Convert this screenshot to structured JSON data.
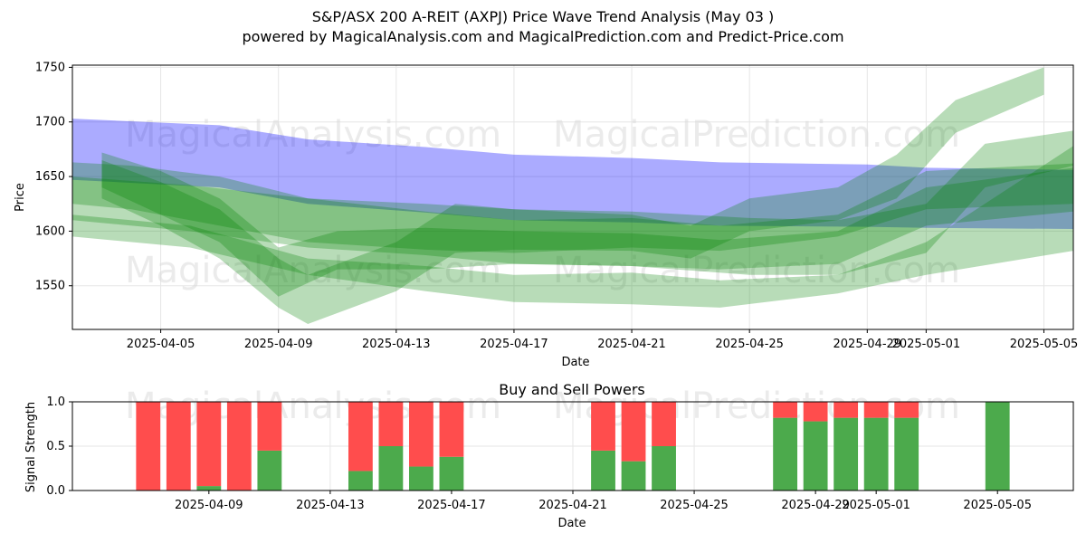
{
  "title": "S&P/ASX 200 A-REIT (AXPJ) Price Wave Trend Analysis (May 03 )",
  "subtitle": "powered by MagicalAnalysis.com and MagicalPrediction.com and Predict-Price.com",
  "watermarks": [
    "MagicalAnalysis.com",
    "MagicalPrediction.com"
  ],
  "chart_data": [
    {
      "type": "area",
      "title": "",
      "xlabel": "Date",
      "ylabel": "Price",
      "xlim": [
        "2025-04-02",
        "2025-05-06"
      ],
      "ylim": [
        1510,
        1752
      ],
      "yticks": [
        1550,
        1600,
        1650,
        1700,
        1750
      ],
      "xticks": [
        "2025-04-05",
        "2025-04-09",
        "2025-04-13",
        "2025-04-17",
        "2025-04-21",
        "2025-04-25",
        "2025-04-29",
        "2025-05-01",
        "2025-05-05"
      ],
      "grid": true,
      "colors": {
        "blue_band": "#0000ff",
        "green_band": "#008000"
      },
      "bands": [
        {
          "color": "blue",
          "x": [
            "2025-04-02",
            "2025-04-07",
            "2025-04-10",
            "2025-04-14",
            "2025-04-17",
            "2025-04-21",
            "2025-04-24",
            "2025-04-29",
            "2025-05-01",
            "2025-05-06"
          ],
          "upper": [
            1703,
            1697,
            1684,
            1677,
            1670,
            1667,
            1663,
            1661,
            1658,
            1656
          ],
          "lower": [
            1647,
            1640,
            1625,
            1617,
            1610,
            1608,
            1605,
            1604,
            1603,
            1602
          ]
        },
        {
          "color": "green",
          "x": [
            "2025-04-02",
            "2025-04-04",
            "2025-04-07",
            "2025-04-10",
            "2025-04-14",
            "2025-04-17",
            "2025-04-21",
            "2025-04-24",
            "2025-04-28",
            "2025-05-01",
            "2025-05-06"
          ],
          "upper": [
            1663,
            1660,
            1650,
            1630,
            1618,
            1610,
            1612,
            1605,
            1615,
            1655,
            1662
          ],
          "lower": [
            1625,
            1620,
            1605,
            1590,
            1583,
            1580,
            1585,
            1582,
            1595,
            1620,
            1625
          ]
        },
        {
          "color": "green",
          "x": [
            "2025-04-03",
            "2025-04-05",
            "2025-04-07",
            "2025-04-09",
            "2025-04-11",
            "2025-04-14",
            "2025-04-17",
            "2025-04-21",
            "2025-04-24",
            "2025-04-28",
            "2025-05-01",
            "2025-05-06"
          ],
          "upper": [
            1672,
            1655,
            1630,
            1585,
            1600,
            1603,
            1600,
            1598,
            1592,
            1600,
            1640,
            1658
          ],
          "lower": [
            1640,
            1615,
            1590,
            1540,
            1565,
            1565,
            1570,
            1568,
            1565,
            1570,
            1605,
            1618
          ]
        },
        {
          "color": "green",
          "x": [
            "2025-04-03",
            "2025-04-05",
            "2025-04-07",
            "2025-04-09",
            "2025-04-10",
            "2025-04-13",
            "2025-04-15",
            "2025-04-17",
            "2025-04-21",
            "2025-04-23",
            "2025-04-25",
            "2025-04-28",
            "2025-04-30",
            "2025-05-02",
            "2025-05-05"
          ],
          "upper": [
            1665,
            1645,
            1620,
            1575,
            1560,
            1590,
            1625,
            1620,
            1615,
            1605,
            1630,
            1640,
            1670,
            1720,
            1750
          ],
          "lower": [
            1630,
            1605,
            1575,
            1530,
            1515,
            1545,
            1580,
            1583,
            1582,
            1575,
            1600,
            1610,
            1630,
            1690,
            1725
          ]
        },
        {
          "color": "green",
          "x": [
            "2025-04-02",
            "2025-04-06",
            "2025-04-10",
            "2025-04-14",
            "2025-04-17",
            "2025-04-21",
            "2025-04-24",
            "2025-04-28",
            "2025-05-01",
            "2025-05-06"
          ],
          "upper": [
            1615,
            1605,
            1575,
            1568,
            1560,
            1562,
            1555,
            1560,
            1590,
            1678
          ],
          "lower": [
            1595,
            1585,
            1560,
            1545,
            1535,
            1533,
            1530,
            1543,
            1560,
            1582
          ]
        },
        {
          "color": "green",
          "x": [
            "2025-04-02",
            "2025-04-06",
            "2025-04-10",
            "2025-04-14",
            "2025-04-17",
            "2025-04-21",
            "2025-04-25",
            "2025-04-28",
            "2025-05-01",
            "2025-05-03",
            "2025-05-06"
          ],
          "upper": [
            1650,
            1642,
            1630,
            1625,
            1620,
            1618,
            1612,
            1610,
            1625,
            1680,
            1692
          ],
          "lower": [
            1610,
            1600,
            1585,
            1578,
            1570,
            1568,
            1560,
            1560,
            1580,
            1640,
            1660
          ]
        }
      ]
    },
    {
      "type": "bar",
      "title": "Buy and Sell Powers",
      "xlabel": "Date",
      "ylabel": "Signal Strength",
      "ylim": [
        0,
        1.0
      ],
      "yticks": [
        "0.0",
        "0.5",
        "1.0"
      ],
      "xticks": [
        "2025-04-09",
        "2025-04-13",
        "2025-04-17",
        "2025-04-21",
        "2025-04-25",
        "2025-04-29",
        "2025-05-01",
        "2025-05-05"
      ],
      "grid": true,
      "colors": {
        "buy": "#4caa4c",
        "sell": "#ff4d4d"
      },
      "categories": [
        "2025-04-07",
        "2025-04-08",
        "2025-04-09",
        "2025-04-10",
        "2025-04-11",
        "2025-04-14",
        "2025-04-15",
        "2025-04-16",
        "2025-04-17",
        "2025-04-22",
        "2025-04-23",
        "2025-04-24",
        "2025-04-28",
        "2025-04-29",
        "2025-04-30",
        "2025-05-01",
        "2025-05-02",
        "2025-05-05"
      ],
      "series": [
        {
          "name": "",
          "values": [
            0.0,
            0.0,
            0.05,
            0.0,
            0.45,
            0.22,
            0.5,
            0.27,
            0.38,
            0.45,
            0.33,
            0.5,
            0.82,
            0.78,
            0.82,
            0.82,
            0.82,
            1.0
          ]
        },
        {
          "name": "",
          "values": [
            1.0,
            1.0,
            0.95,
            1.0,
            0.55,
            0.78,
            0.5,
            0.73,
            0.62,
            0.55,
            0.67,
            0.5,
            0.18,
            0.22,
            0.18,
            0.18,
            0.18,
            0.0
          ]
        }
      ]
    }
  ]
}
